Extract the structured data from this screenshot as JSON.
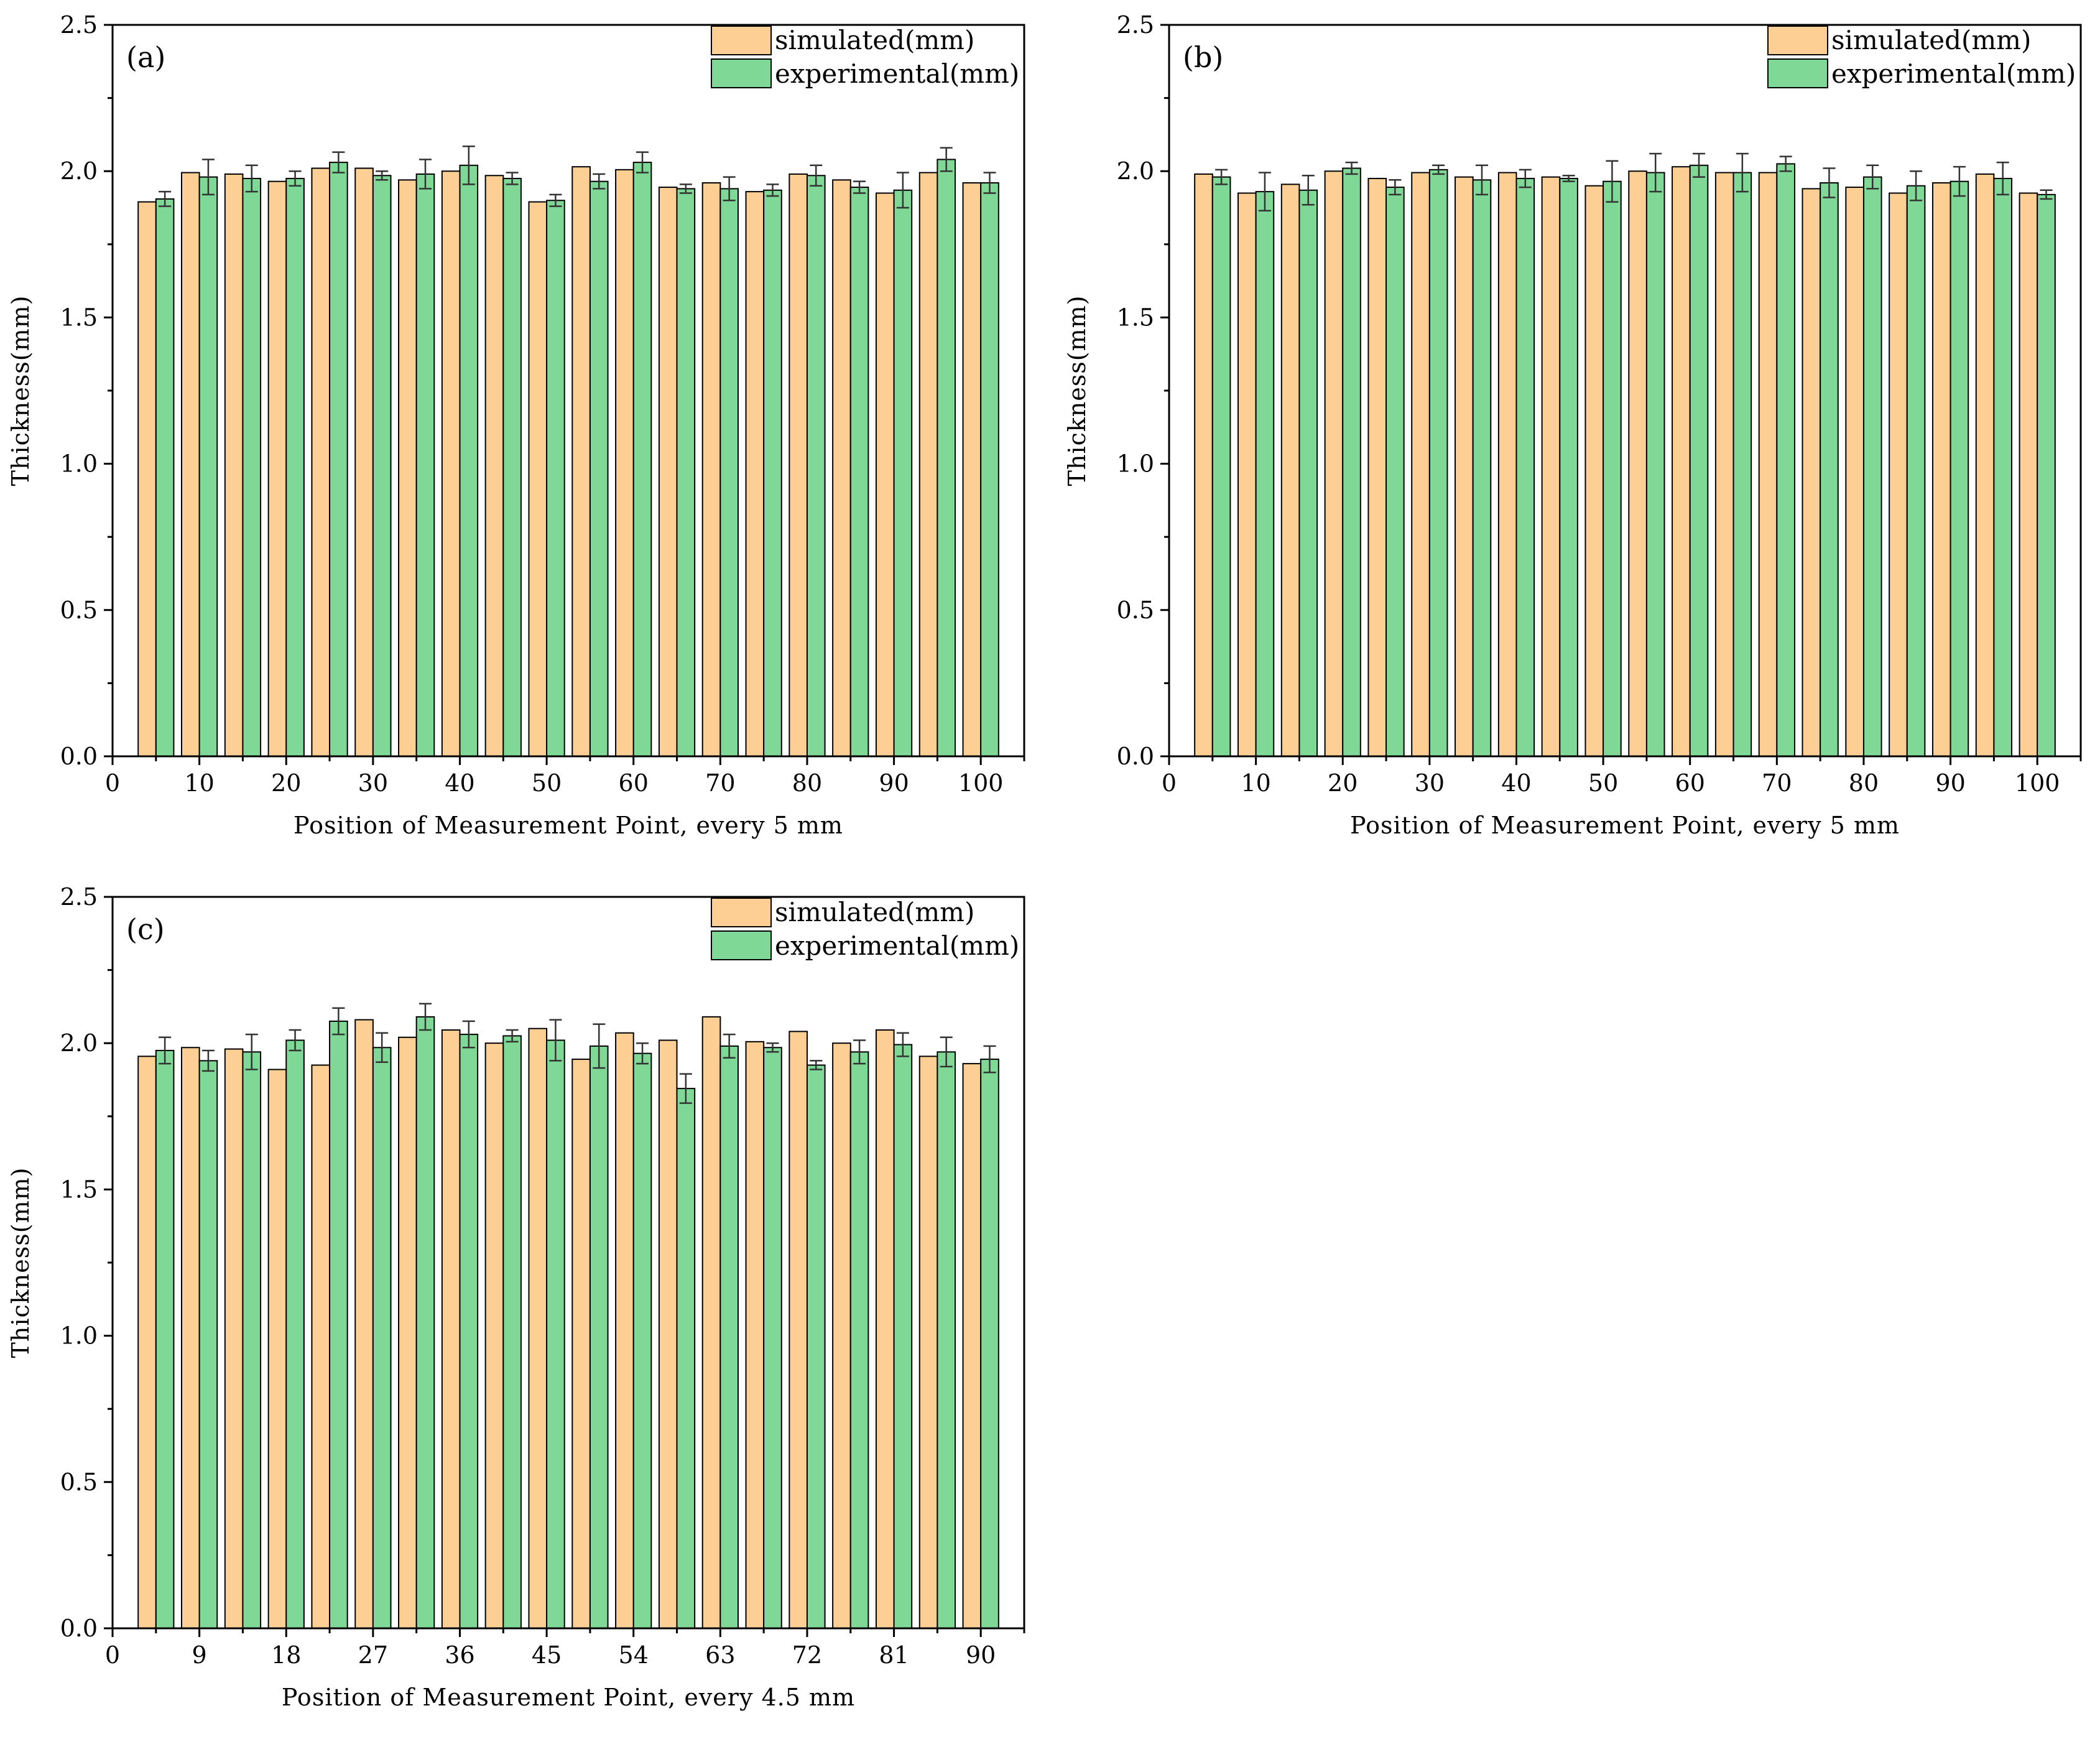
{
  "colors": {
    "simulated": "#FDCF94",
    "experimental": "#7FD895",
    "outline": "#000000",
    "errorbar": "#333333"
  },
  "chart_data": [
    {
      "type": "bar",
      "panel_label": "(a)",
      "xlabel": "Position of Measurement Point, every 5 mm",
      "ylabel": "Thickness(mm)",
      "ylim": [
        0,
        2.5
      ],
      "yticks": [
        "0.0",
        "0.5",
        "1.0",
        "1.5",
        "2.0",
        "2.5"
      ],
      "xlim": [
        0,
        105
      ],
      "xticks": [
        "0",
        "10",
        "20",
        "30",
        "40",
        "50",
        "60",
        "70",
        "80",
        "90",
        "100"
      ],
      "x": [
        5,
        10,
        15,
        20,
        25,
        30,
        35,
        40,
        45,
        50,
        55,
        60,
        65,
        70,
        75,
        80,
        85,
        90,
        95,
        100
      ],
      "legend": [
        "simulated(mm)",
        "experimental(mm)"
      ],
      "series": [
        {
          "name": "simulated(mm)",
          "values": [
            1.895,
            1.995,
            1.99,
            1.965,
            2.01,
            2.01,
            1.97,
            2.0,
            1.985,
            1.895,
            2.015,
            2.005,
            1.945,
            1.96,
            1.93,
            1.99,
            1.97,
            1.925,
            1.995,
            1.96
          ]
        },
        {
          "name": "experimental(mm)",
          "values": [
            1.905,
            1.98,
            1.975,
            1.975,
            2.03,
            1.985,
            1.99,
            2.02,
            1.975,
            1.9,
            1.965,
            2.03,
            1.94,
            1.94,
            1.935,
            1.985,
            1.945,
            1.935,
            2.04,
            1.96
          ],
          "errors": [
            0.025,
            0.06,
            0.045,
            0.025,
            0.035,
            0.015,
            0.05,
            0.065,
            0.02,
            0.02,
            0.025,
            0.035,
            0.015,
            0.04,
            0.02,
            0.035,
            0.02,
            0.06,
            0.04,
            0.035
          ]
        }
      ]
    },
    {
      "type": "bar",
      "panel_label": "(b)",
      "xlabel": "Position of Measurement Point, every 5 mm",
      "ylabel": "Thickness(mm)",
      "ylim": [
        0,
        2.5
      ],
      "yticks": [
        "0.0",
        "0.5",
        "1.0",
        "1.5",
        "2.0",
        "2.5"
      ],
      "xlim": [
        0,
        105
      ],
      "xticks": [
        "0",
        "10",
        "20",
        "30",
        "40",
        "50",
        "60",
        "70",
        "80",
        "90",
        "100"
      ],
      "x": [
        5,
        10,
        15,
        20,
        25,
        30,
        35,
        40,
        45,
        50,
        55,
        60,
        65,
        70,
        75,
        80,
        85,
        90,
        95,
        100
      ],
      "legend": [
        "simulated(mm)",
        "experimental(mm)"
      ],
      "series": [
        {
          "name": "simulated(mm)",
          "values": [
            1.99,
            1.925,
            1.955,
            2.0,
            1.975,
            1.995,
            1.98,
            1.995,
            1.98,
            1.95,
            2.0,
            2.015,
            1.995,
            1.995,
            1.94,
            1.945,
            1.925,
            1.96,
            1.99,
            1.925
          ]
        },
        {
          "name": "experimental(mm)",
          "values": [
            1.98,
            1.93,
            1.935,
            2.01,
            1.945,
            2.005,
            1.97,
            1.975,
            1.975,
            1.965,
            1.995,
            2.02,
            1.995,
            2.025,
            1.96,
            1.98,
            1.95,
            1.965,
            1.975,
            1.92
          ],
          "errors": [
            0.025,
            0.065,
            0.05,
            0.02,
            0.025,
            0.015,
            0.05,
            0.03,
            0.01,
            0.07,
            0.065,
            0.04,
            0.065,
            0.025,
            0.05,
            0.04,
            0.05,
            0.05,
            0.055,
            0.015
          ]
        }
      ]
    },
    {
      "type": "bar",
      "panel_label": "(c)",
      "xlabel": "Position of Measurement Point, every 4.5 mm",
      "ylabel": "Thickness(mm)",
      "ylim": [
        0,
        2.5
      ],
      "yticks": [
        "0.0",
        "0.5",
        "1.0",
        "1.5",
        "2.0",
        "2.5"
      ],
      "xlim": [
        0,
        94.5
      ],
      "xticks": [
        "0",
        "9",
        "18",
        "27",
        "36",
        "45",
        "54",
        "63",
        "72",
        "81",
        "90"
      ],
      "x": [
        4.5,
        9,
        13.5,
        18,
        22.5,
        27,
        31.5,
        36,
        40.5,
        45,
        49.5,
        54,
        58.5,
        63,
        67.5,
        72,
        76.5,
        81,
        85.5,
        90
      ],
      "legend": [
        "simulated(mm)",
        "experimental(mm)"
      ],
      "series": [
        {
          "name": "simulated(mm)",
          "values": [
            1.955,
            1.985,
            1.98,
            1.91,
            1.925,
            2.08,
            2.02,
            2.045,
            2.0,
            2.05,
            1.945,
            2.035,
            2.01,
            2.09,
            2.005,
            2.04,
            2.0,
            2.045,
            1.955,
            1.93
          ]
        },
        {
          "name": "experimental(mm)",
          "values": [
            1.975,
            1.94,
            1.97,
            2.01,
            2.075,
            1.985,
            2.09,
            2.03,
            2.025,
            2.01,
            1.99,
            1.965,
            1.845,
            1.99,
            1.985,
            1.925,
            1.97,
            1.995,
            1.97,
            1.945
          ],
          "errors": [
            0.045,
            0.035,
            0.06,
            0.035,
            0.045,
            0.05,
            0.045,
            0.045,
            0.02,
            0.07,
            0.075,
            0.035,
            0.05,
            0.04,
            0.015,
            0.015,
            0.04,
            0.04,
            0.05,
            0.045
          ]
        }
      ]
    }
  ]
}
